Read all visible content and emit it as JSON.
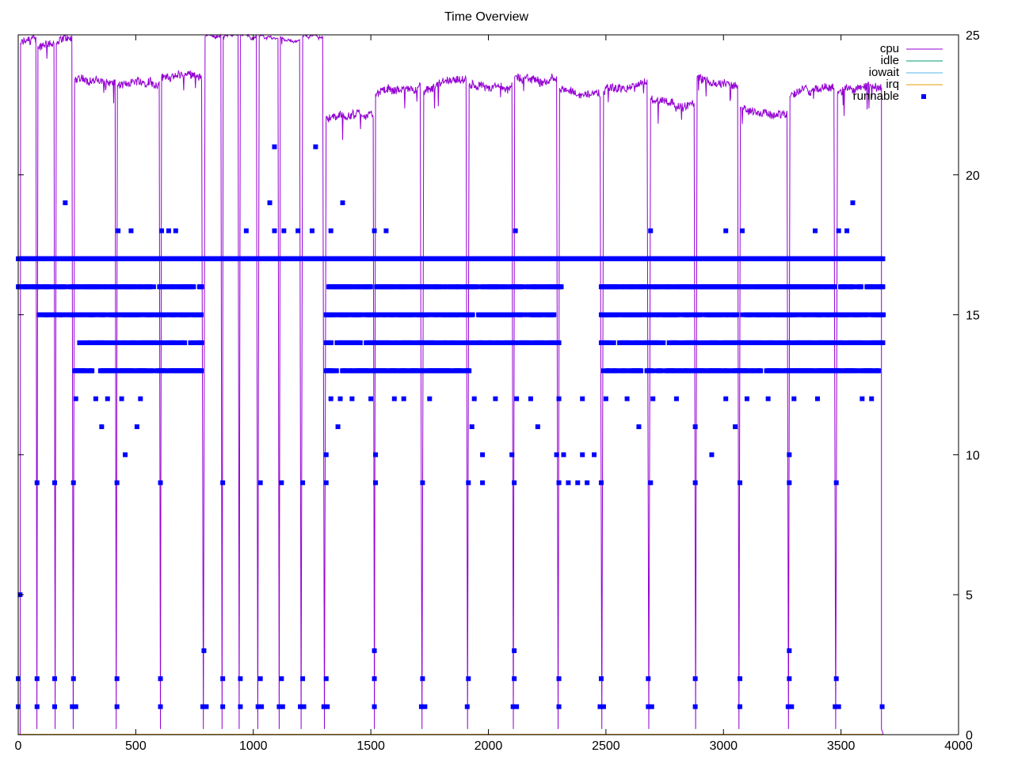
{
  "chart_data": {
    "type": "line",
    "title": "Time Overview",
    "xlim": [
      0,
      4000
    ],
    "ylim": [
      0,
      25
    ],
    "x_ticks": [
      0,
      500,
      1000,
      1500,
      2000,
      2500,
      3000,
      3500,
      4000
    ],
    "y_ticks": [
      0,
      5,
      10,
      15,
      20,
      25
    ],
    "y_axis_side": "right",
    "grid": false,
    "legend_placement": "top-right",
    "series": [
      {
        "name": "cpu",
        "color": "#9400d3",
        "style": "line",
        "segments": [
          {
            "x0": 0,
            "x1": 8,
            "level": 0
          },
          {
            "x0": 10,
            "x1": 75,
            "level": 24.7
          },
          {
            "x0": 84,
            "x1": 152,
            "level": 24.6
          },
          {
            "x0": 162,
            "x1": 228,
            "level": 24.7
          },
          {
            "x0": 240,
            "x1": 412,
            "level": 23.4
          },
          {
            "x0": 422,
            "x1": 600,
            "level": 23.2
          },
          {
            "x0": 610,
            "x1": 780,
            "level": 23.5
          },
          {
            "x0": 795,
            "x1": 862,
            "level": 24.95
          },
          {
            "x0": 872,
            "x1": 935,
            "level": 24.95
          },
          {
            "x0": 945,
            "x1": 1013,
            "level": 24.95
          },
          {
            "x0": 1025,
            "x1": 1105,
            "level": 24.95
          },
          {
            "x0": 1115,
            "x1": 1197,
            "level": 24.95
          },
          {
            "x0": 1210,
            "x1": 1295,
            "level": 24.95
          },
          {
            "x0": 1310,
            "x1": 1510,
            "level": 22.1
          },
          {
            "x0": 1520,
            "x1": 1710,
            "level": 22.9
          },
          {
            "x0": 1725,
            "x1": 1905,
            "level": 23.0
          },
          {
            "x0": 1918,
            "x1": 2100,
            "level": 23.2
          },
          {
            "x0": 2112,
            "x1": 2290,
            "level": 23.5
          },
          {
            "x0": 2303,
            "x1": 2475,
            "level": 23.1
          },
          {
            "x0": 2490,
            "x1": 2675,
            "level": 23.0
          },
          {
            "x0": 2690,
            "x1": 2875,
            "level": 22.7
          },
          {
            "x0": 2888,
            "x1": 3060,
            "level": 23.5
          },
          {
            "x0": 3072,
            "x1": 3270,
            "level": 22.4
          },
          {
            "x0": 3283,
            "x1": 3470,
            "level": 22.8
          },
          {
            "x0": 3485,
            "x1": 3672,
            "level": 22.9
          }
        ],
        "end_x": 3680
      },
      {
        "name": "idle",
        "color": "#009e73",
        "style": "line",
        "level": 0
      },
      {
        "name": "iowait",
        "color": "#56b4e9",
        "style": "line",
        "level": 0
      },
      {
        "name": "irq",
        "color": "#e69f00",
        "style": "line",
        "level": 0
      },
      {
        "name": "runnable",
        "color": "#0000ff",
        "style": "points",
        "continuous_levels": [
          {
            "x0": 0,
            "x1": 3680,
            "y": 17
          },
          {
            "x0": 0,
            "x1": 780,
            "y": 16
          },
          {
            "x0": 1310,
            "x1": 2310,
            "y": 16
          },
          {
            "x0": 2480,
            "x1": 3680,
            "y": 16
          },
          {
            "x0": 90,
            "x1": 780,
            "y": 15
          },
          {
            "x0": 1310,
            "x1": 2280,
            "y": 15
          },
          {
            "x0": 2480,
            "x1": 3680,
            "y": 15
          },
          {
            "x0": 250,
            "x1": 780,
            "y": 14
          },
          {
            "x0": 1310,
            "x1": 2300,
            "y": 14
          },
          {
            "x0": 2480,
            "x1": 3680,
            "y": 14
          },
          {
            "x0": 240,
            "x1": 780,
            "y": 13
          },
          {
            "x0": 1310,
            "x1": 1920,
            "y": 13
          },
          {
            "x0": 2490,
            "x1": 3670,
            "y": 13
          }
        ],
        "points": [
          {
            "x": 8,
            "y": 5
          },
          {
            "x": 200,
            "y": 19
          },
          {
            "x": 1070,
            "y": 19
          },
          {
            "x": 1380,
            "y": 19
          },
          {
            "x": 3550,
            "y": 19
          },
          {
            "x": 1090,
            "y": 21
          },
          {
            "x": 1265,
            "y": 21
          },
          {
            "x": 425,
            "y": 18
          },
          {
            "x": 480,
            "y": 18
          },
          {
            "x": 610,
            "y": 18
          },
          {
            "x": 640,
            "y": 18
          },
          {
            "x": 670,
            "y": 18
          },
          {
            "x": 970,
            "y": 18
          },
          {
            "x": 1090,
            "y": 18
          },
          {
            "x": 1130,
            "y": 18
          },
          {
            "x": 1190,
            "y": 18
          },
          {
            "x": 1250,
            "y": 18
          },
          {
            "x": 1330,
            "y": 18
          },
          {
            "x": 1515,
            "y": 18
          },
          {
            "x": 1565,
            "y": 18
          },
          {
            "x": 2115,
            "y": 18
          },
          {
            "x": 2690,
            "y": 18
          },
          {
            "x": 3010,
            "y": 18
          },
          {
            "x": 3080,
            "y": 18
          },
          {
            "x": 3390,
            "y": 18
          },
          {
            "x": 3490,
            "y": 18
          },
          {
            "x": 3525,
            "y": 18
          },
          {
            "x": 245,
            "y": 12
          },
          {
            "x": 330,
            "y": 12
          },
          {
            "x": 380,
            "y": 12
          },
          {
            "x": 440,
            "y": 12
          },
          {
            "x": 520,
            "y": 12
          },
          {
            "x": 1330,
            "y": 12
          },
          {
            "x": 1370,
            "y": 12
          },
          {
            "x": 1420,
            "y": 12
          },
          {
            "x": 1500,
            "y": 12
          },
          {
            "x": 1600,
            "y": 12
          },
          {
            "x": 1640,
            "y": 12
          },
          {
            "x": 1750,
            "y": 12
          },
          {
            "x": 1940,
            "y": 12
          },
          {
            "x": 2030,
            "y": 12
          },
          {
            "x": 2120,
            "y": 12
          },
          {
            "x": 2180,
            "y": 12
          },
          {
            "x": 2300,
            "y": 12
          },
          {
            "x": 2400,
            "y": 12
          },
          {
            "x": 2500,
            "y": 12
          },
          {
            "x": 2590,
            "y": 12
          },
          {
            "x": 2700,
            "y": 12
          },
          {
            "x": 2800,
            "y": 12
          },
          {
            "x": 3010,
            "y": 12
          },
          {
            "x": 3100,
            "y": 12
          },
          {
            "x": 3190,
            "y": 12
          },
          {
            "x": 3300,
            "y": 12
          },
          {
            "x": 3400,
            "y": 12
          },
          {
            "x": 3590,
            "y": 12
          },
          {
            "x": 3630,
            "y": 12
          },
          {
            "x": 355,
            "y": 11
          },
          {
            "x": 505,
            "y": 11
          },
          {
            "x": 1360,
            "y": 11
          },
          {
            "x": 1930,
            "y": 11
          },
          {
            "x": 2210,
            "y": 11
          },
          {
            "x": 2640,
            "y": 11
          },
          {
            "x": 2880,
            "y": 11
          },
          {
            "x": 3050,
            "y": 11
          },
          {
            "x": 455,
            "y": 10
          },
          {
            "x": 1310,
            "y": 10
          },
          {
            "x": 1520,
            "y": 10
          },
          {
            "x": 1975,
            "y": 10
          },
          {
            "x": 2100,
            "y": 10
          },
          {
            "x": 2290,
            "y": 10
          },
          {
            "x": 2320,
            "y": 10
          },
          {
            "x": 2400,
            "y": 10
          },
          {
            "x": 2450,
            "y": 10
          },
          {
            "x": 2950,
            "y": 10
          },
          {
            "x": 3280,
            "y": 10
          },
          {
            "x": 80,
            "y": 9
          },
          {
            "x": 155,
            "y": 9
          },
          {
            "x": 235,
            "y": 9
          },
          {
            "x": 420,
            "y": 9
          },
          {
            "x": 605,
            "y": 9
          },
          {
            "x": 870,
            "y": 9
          },
          {
            "x": 1030,
            "y": 9
          },
          {
            "x": 1120,
            "y": 9
          },
          {
            "x": 1210,
            "y": 9
          },
          {
            "x": 1310,
            "y": 9
          },
          {
            "x": 1520,
            "y": 9
          },
          {
            "x": 1720,
            "y": 9
          },
          {
            "x": 1915,
            "y": 9
          },
          {
            "x": 1975,
            "y": 9
          },
          {
            "x": 2110,
            "y": 9
          },
          {
            "x": 2300,
            "y": 9
          },
          {
            "x": 2340,
            "y": 9
          },
          {
            "x": 2380,
            "y": 9
          },
          {
            "x": 2420,
            "y": 9
          },
          {
            "x": 2480,
            "y": 9
          },
          {
            "x": 2690,
            "y": 9
          },
          {
            "x": 2880,
            "y": 9
          },
          {
            "x": 3070,
            "y": 9
          },
          {
            "x": 3280,
            "y": 9
          },
          {
            "x": 3480,
            "y": 9
          },
          {
            "x": 790,
            "y": 3
          },
          {
            "x": 1515,
            "y": 3
          },
          {
            "x": 2110,
            "y": 3
          },
          {
            "x": 3280,
            "y": 3
          },
          {
            "x": 0,
            "y": 2
          },
          {
            "x": 80,
            "y": 2
          },
          {
            "x": 155,
            "y": 2
          },
          {
            "x": 235,
            "y": 2
          },
          {
            "x": 420,
            "y": 2
          },
          {
            "x": 605,
            "y": 2
          },
          {
            "x": 870,
            "y": 2
          },
          {
            "x": 945,
            "y": 2
          },
          {
            "x": 1030,
            "y": 2
          },
          {
            "x": 1120,
            "y": 2
          },
          {
            "x": 1210,
            "y": 2
          },
          {
            "x": 1310,
            "y": 2
          },
          {
            "x": 1515,
            "y": 2
          },
          {
            "x": 1720,
            "y": 2
          },
          {
            "x": 1915,
            "y": 2
          },
          {
            "x": 2110,
            "y": 2
          },
          {
            "x": 2300,
            "y": 2
          },
          {
            "x": 2480,
            "y": 2
          },
          {
            "x": 2680,
            "y": 2
          },
          {
            "x": 2880,
            "y": 2
          },
          {
            "x": 3070,
            "y": 2
          },
          {
            "x": 3280,
            "y": 2
          },
          {
            "x": 3480,
            "y": 2
          },
          {
            "x": 0,
            "y": 1
          },
          {
            "x": 80,
            "y": 1
          },
          {
            "x": 155,
            "y": 1
          },
          {
            "x": 230,
            "y": 1
          },
          {
            "x": 245,
            "y": 1
          },
          {
            "x": 420,
            "y": 1
          },
          {
            "x": 605,
            "y": 1
          },
          {
            "x": 785,
            "y": 1
          },
          {
            "x": 800,
            "y": 1
          },
          {
            "x": 870,
            "y": 1
          },
          {
            "x": 945,
            "y": 1
          },
          {
            "x": 1020,
            "y": 1
          },
          {
            "x": 1035,
            "y": 1
          },
          {
            "x": 1110,
            "y": 1
          },
          {
            "x": 1125,
            "y": 1
          },
          {
            "x": 1200,
            "y": 1
          },
          {
            "x": 1215,
            "y": 1
          },
          {
            "x": 1300,
            "y": 1
          },
          {
            "x": 1315,
            "y": 1
          },
          {
            "x": 1515,
            "y": 1
          },
          {
            "x": 1715,
            "y": 1
          },
          {
            "x": 1730,
            "y": 1
          },
          {
            "x": 1910,
            "y": 1
          },
          {
            "x": 2105,
            "y": 1
          },
          {
            "x": 2120,
            "y": 1
          },
          {
            "x": 2300,
            "y": 1
          },
          {
            "x": 2475,
            "y": 1
          },
          {
            "x": 2490,
            "y": 1
          },
          {
            "x": 2680,
            "y": 1
          },
          {
            "x": 2695,
            "y": 1
          },
          {
            "x": 2880,
            "y": 1
          },
          {
            "x": 3070,
            "y": 1
          },
          {
            "x": 3275,
            "y": 1
          },
          {
            "x": 3290,
            "y": 1
          },
          {
            "x": 3475,
            "y": 1
          },
          {
            "x": 3490,
            "y": 1
          },
          {
            "x": 3675,
            "y": 1
          }
        ]
      }
    ]
  }
}
